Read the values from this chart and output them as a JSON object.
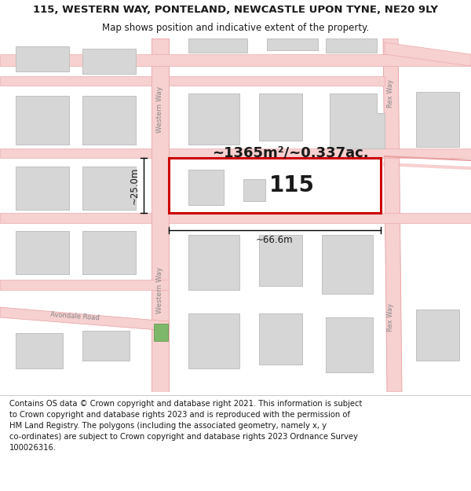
{
  "title": "115, WESTERN WAY, PONTELAND, NEWCASTLE UPON TYNE, NE20 9LY",
  "subtitle": "Map shows position and indicative extent of the property.",
  "footer": "Contains OS data © Crown copyright and database right 2021. This information is subject\nto Crown copyright and database rights 2023 and is reproduced with the permission of\nHM Land Registry. The polygons (including the associated geometry, namely x, y\nco-ordinates) are subject to Crown copyright and database rights 2023 Ordnance Survey\n100026316.",
  "bg_color": "#ffffff",
  "road_fill": "#f7d0d0",
  "road_edge": "#e8a0a0",
  "building_fill": "#d6d6d6",
  "building_edge": "#c0c0c0",
  "highlight_color": "#cc0000",
  "text_dark": "#1a1a1a",
  "text_gray": "#888888",
  "green_fill": "#7db86a",
  "area_text": "~1365m²/~0.337ac.",
  "width_text": "~66.6m",
  "height_text": "~25.0m",
  "number_text": "115",
  "label_western_way": "Western Way",
  "label_rex_way": "Rex Way",
  "label_avondale": "Avondale Road",
  "title_fontsize": 9.5,
  "subtitle_fontsize": 8.5,
  "footer_fontsize": 7.2,
  "number_fontsize": 20,
  "area_fontsize": 13,
  "dim_fontsize": 8.5
}
